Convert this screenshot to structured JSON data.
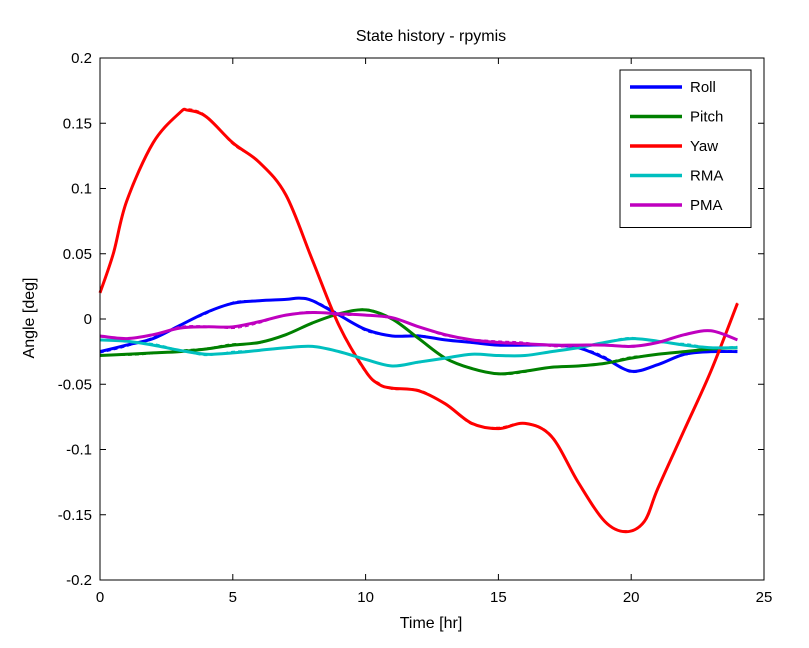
{
  "chart_data": {
    "type": "line",
    "title": "State history - rpymis",
    "xlabel": "Time [hr]",
    "ylabel": "Angle [deg]",
    "xlim": [
      0,
      25
    ],
    "ylim": [
      -0.2,
      0.2
    ],
    "xticks": [
      0,
      5,
      10,
      15,
      20,
      25
    ],
    "xtick_labels": [
      "0",
      "5",
      "10",
      "15",
      "20",
      "25"
    ],
    "yticks": [
      -0.2,
      -0.15,
      -0.1,
      -0.05,
      0,
      0.05,
      0.1,
      0.15,
      0.2
    ],
    "ytick_labels": [
      "-0.2",
      "-0.15",
      "-0.1",
      "-0.05",
      "0",
      "0.05",
      "0.1",
      "0.15",
      "0.2"
    ],
    "grid": false,
    "legend_position": "top-right",
    "series": [
      {
        "name": "Roll",
        "color": "#0000ff",
        "x": [
          0,
          1,
          2,
          3,
          4,
          5,
          6,
          7,
          7.5,
          8,
          9,
          10,
          11,
          12,
          13,
          14,
          15,
          16,
          17,
          18,
          19,
          20,
          21,
          22,
          23,
          24
        ],
        "y": [
          -0.025,
          -0.02,
          -0.015,
          -0.005,
          0.005,
          0.012,
          0.014,
          0.015,
          0.016,
          0.014,
          0.003,
          -0.008,
          -0.013,
          -0.013,
          -0.016,
          -0.018,
          -0.02,
          -0.02,
          -0.02,
          -0.022,
          -0.03,
          -0.04,
          -0.035,
          -0.027,
          -0.025,
          -0.025
        ]
      },
      {
        "name": "Pitch",
        "color": "#008000",
        "x": [
          0,
          1,
          2,
          3,
          4,
          5,
          6,
          7,
          8,
          9,
          10,
          11,
          12,
          13,
          14,
          15,
          16,
          17,
          18,
          19,
          20,
          21,
          22,
          23,
          24
        ],
        "y": [
          -0.028,
          -0.027,
          -0.026,
          -0.025,
          -0.023,
          -0.02,
          -0.018,
          -0.012,
          -0.003,
          0.004,
          0.007,
          0.0,
          -0.015,
          -0.03,
          -0.038,
          -0.042,
          -0.04,
          -0.037,
          -0.036,
          -0.034,
          -0.03,
          -0.027,
          -0.025,
          -0.023,
          -0.022
        ]
      },
      {
        "name": "Yaw",
        "color": "#ff0000",
        "x": [
          0,
          0.5,
          1,
          2,
          3,
          3.3,
          4,
          5,
          6,
          7,
          8,
          9,
          10,
          10.5,
          11,
          12,
          13,
          14,
          15,
          16,
          17,
          18,
          19,
          19.8,
          20.5,
          21,
          22,
          23,
          24
        ],
        "y": [
          0.02,
          0.05,
          0.09,
          0.135,
          0.158,
          0.16,
          0.155,
          0.135,
          0.12,
          0.095,
          0.045,
          -0.005,
          -0.04,
          -0.05,
          -0.053,
          -0.055,
          -0.065,
          -0.08,
          -0.084,
          -0.08,
          -0.09,
          -0.125,
          -0.155,
          -0.163,
          -0.155,
          -0.13,
          -0.085,
          -0.04,
          0.012
        ]
      },
      {
        "name": "RMA",
        "color": "#00bfbf",
        "x": [
          0,
          1,
          2,
          3,
          4,
          5,
          6,
          7,
          8,
          9,
          10,
          11,
          12,
          13,
          14,
          15,
          16,
          17,
          18,
          19,
          20,
          21,
          22,
          23,
          24
        ],
        "y": [
          -0.016,
          -0.017,
          -0.02,
          -0.024,
          -0.027,
          -0.026,
          -0.024,
          -0.022,
          -0.021,
          -0.025,
          -0.031,
          -0.036,
          -0.033,
          -0.03,
          -0.027,
          -0.028,
          -0.028,
          -0.025,
          -0.022,
          -0.018,
          -0.015,
          -0.017,
          -0.02,
          -0.022,
          -0.022
        ]
      },
      {
        "name": "PMA",
        "color": "#bf00bf",
        "x": [
          0,
          1,
          2,
          3,
          4,
          5,
          6,
          7,
          8,
          9,
          10,
          11,
          12,
          13,
          14,
          15,
          16,
          17,
          18,
          19,
          20,
          21,
          22,
          23,
          24
        ],
        "y": [
          -0.013,
          -0.015,
          -0.012,
          -0.007,
          -0.006,
          -0.006,
          -0.002,
          0.003,
          0.005,
          0.004,
          0.003,
          0.001,
          -0.006,
          -0.012,
          -0.016,
          -0.018,
          -0.019,
          -0.02,
          -0.02,
          -0.02,
          -0.021,
          -0.018,
          -0.012,
          -0.009,
          -0.016
        ]
      }
    ]
  }
}
